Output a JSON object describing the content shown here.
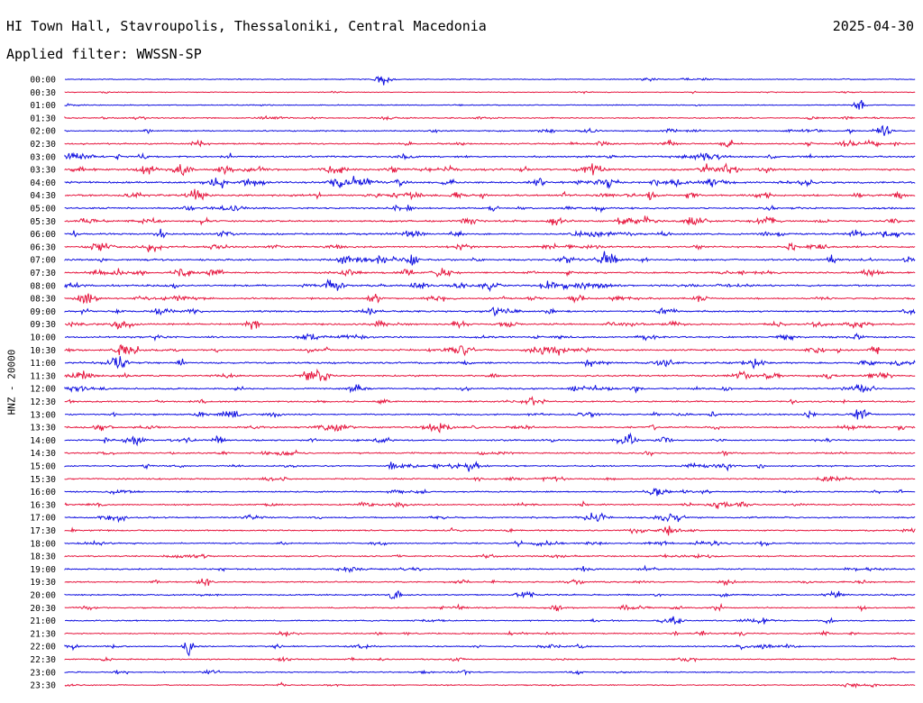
{
  "header": {
    "station": "HI Town Hall, Stavroupolis, Thessaloniki, Central Macedonia",
    "date": "2025-04-30",
    "filter": "Applied filter: WWSSN-SP"
  },
  "chart_data": {
    "type": "line",
    "description_type": "helicorder",
    "channel_label": "HNZ - 20000",
    "colors": {
      "odd_rows": "#1010e0",
      "even_rows": "#e6173f",
      "pattern": [
        "blue",
        "red"
      ]
    },
    "row_labels": [
      "00:00",
      "00:30",
      "01:00",
      "01:30",
      "02:00",
      "02:30",
      "03:00",
      "03:30",
      "04:00",
      "04:30",
      "05:00",
      "05:30",
      "06:00",
      "06:30",
      "07:00",
      "07:30",
      "08:00",
      "08:30",
      "09:00",
      "09:30",
      "10:00",
      "10:30",
      "11:00",
      "11:30",
      "12:00",
      "12:30",
      "13:00",
      "13:30",
      "14:00",
      "14:30",
      "15:00",
      "15:30",
      "16:00",
      "16:30",
      "17:00",
      "17:30",
      "18:00",
      "18:30",
      "19:00",
      "19:30",
      "20:00",
      "20:30",
      "21:00",
      "21:30",
      "22:00",
      "22:30",
      "23:00",
      "23:30"
    ],
    "noise_level": [
      1.0,
      0.8,
      1.0,
      1.6,
      1.8,
      2.3,
      3.0,
      3.4,
      3.6,
      3.3,
      2.6,
      3.2,
      3.0,
      3.0,
      3.2,
      3.0,
      3.1,
      2.9,
      3.0,
      2.9,
      2.8,
      3.0,
      3.0,
      2.9,
      2.6,
      2.5,
      2.5,
      2.5,
      2.3,
      2.2,
      2.2,
      2.1,
      2.1,
      2.3,
      2.2,
      2.2,
      2.1,
      2.2,
      2.1,
      2.0,
      2.0,
      2.0,
      1.8,
      1.8,
      1.8,
      1.6,
      1.6,
      1.5
    ],
    "seed": 7
  }
}
